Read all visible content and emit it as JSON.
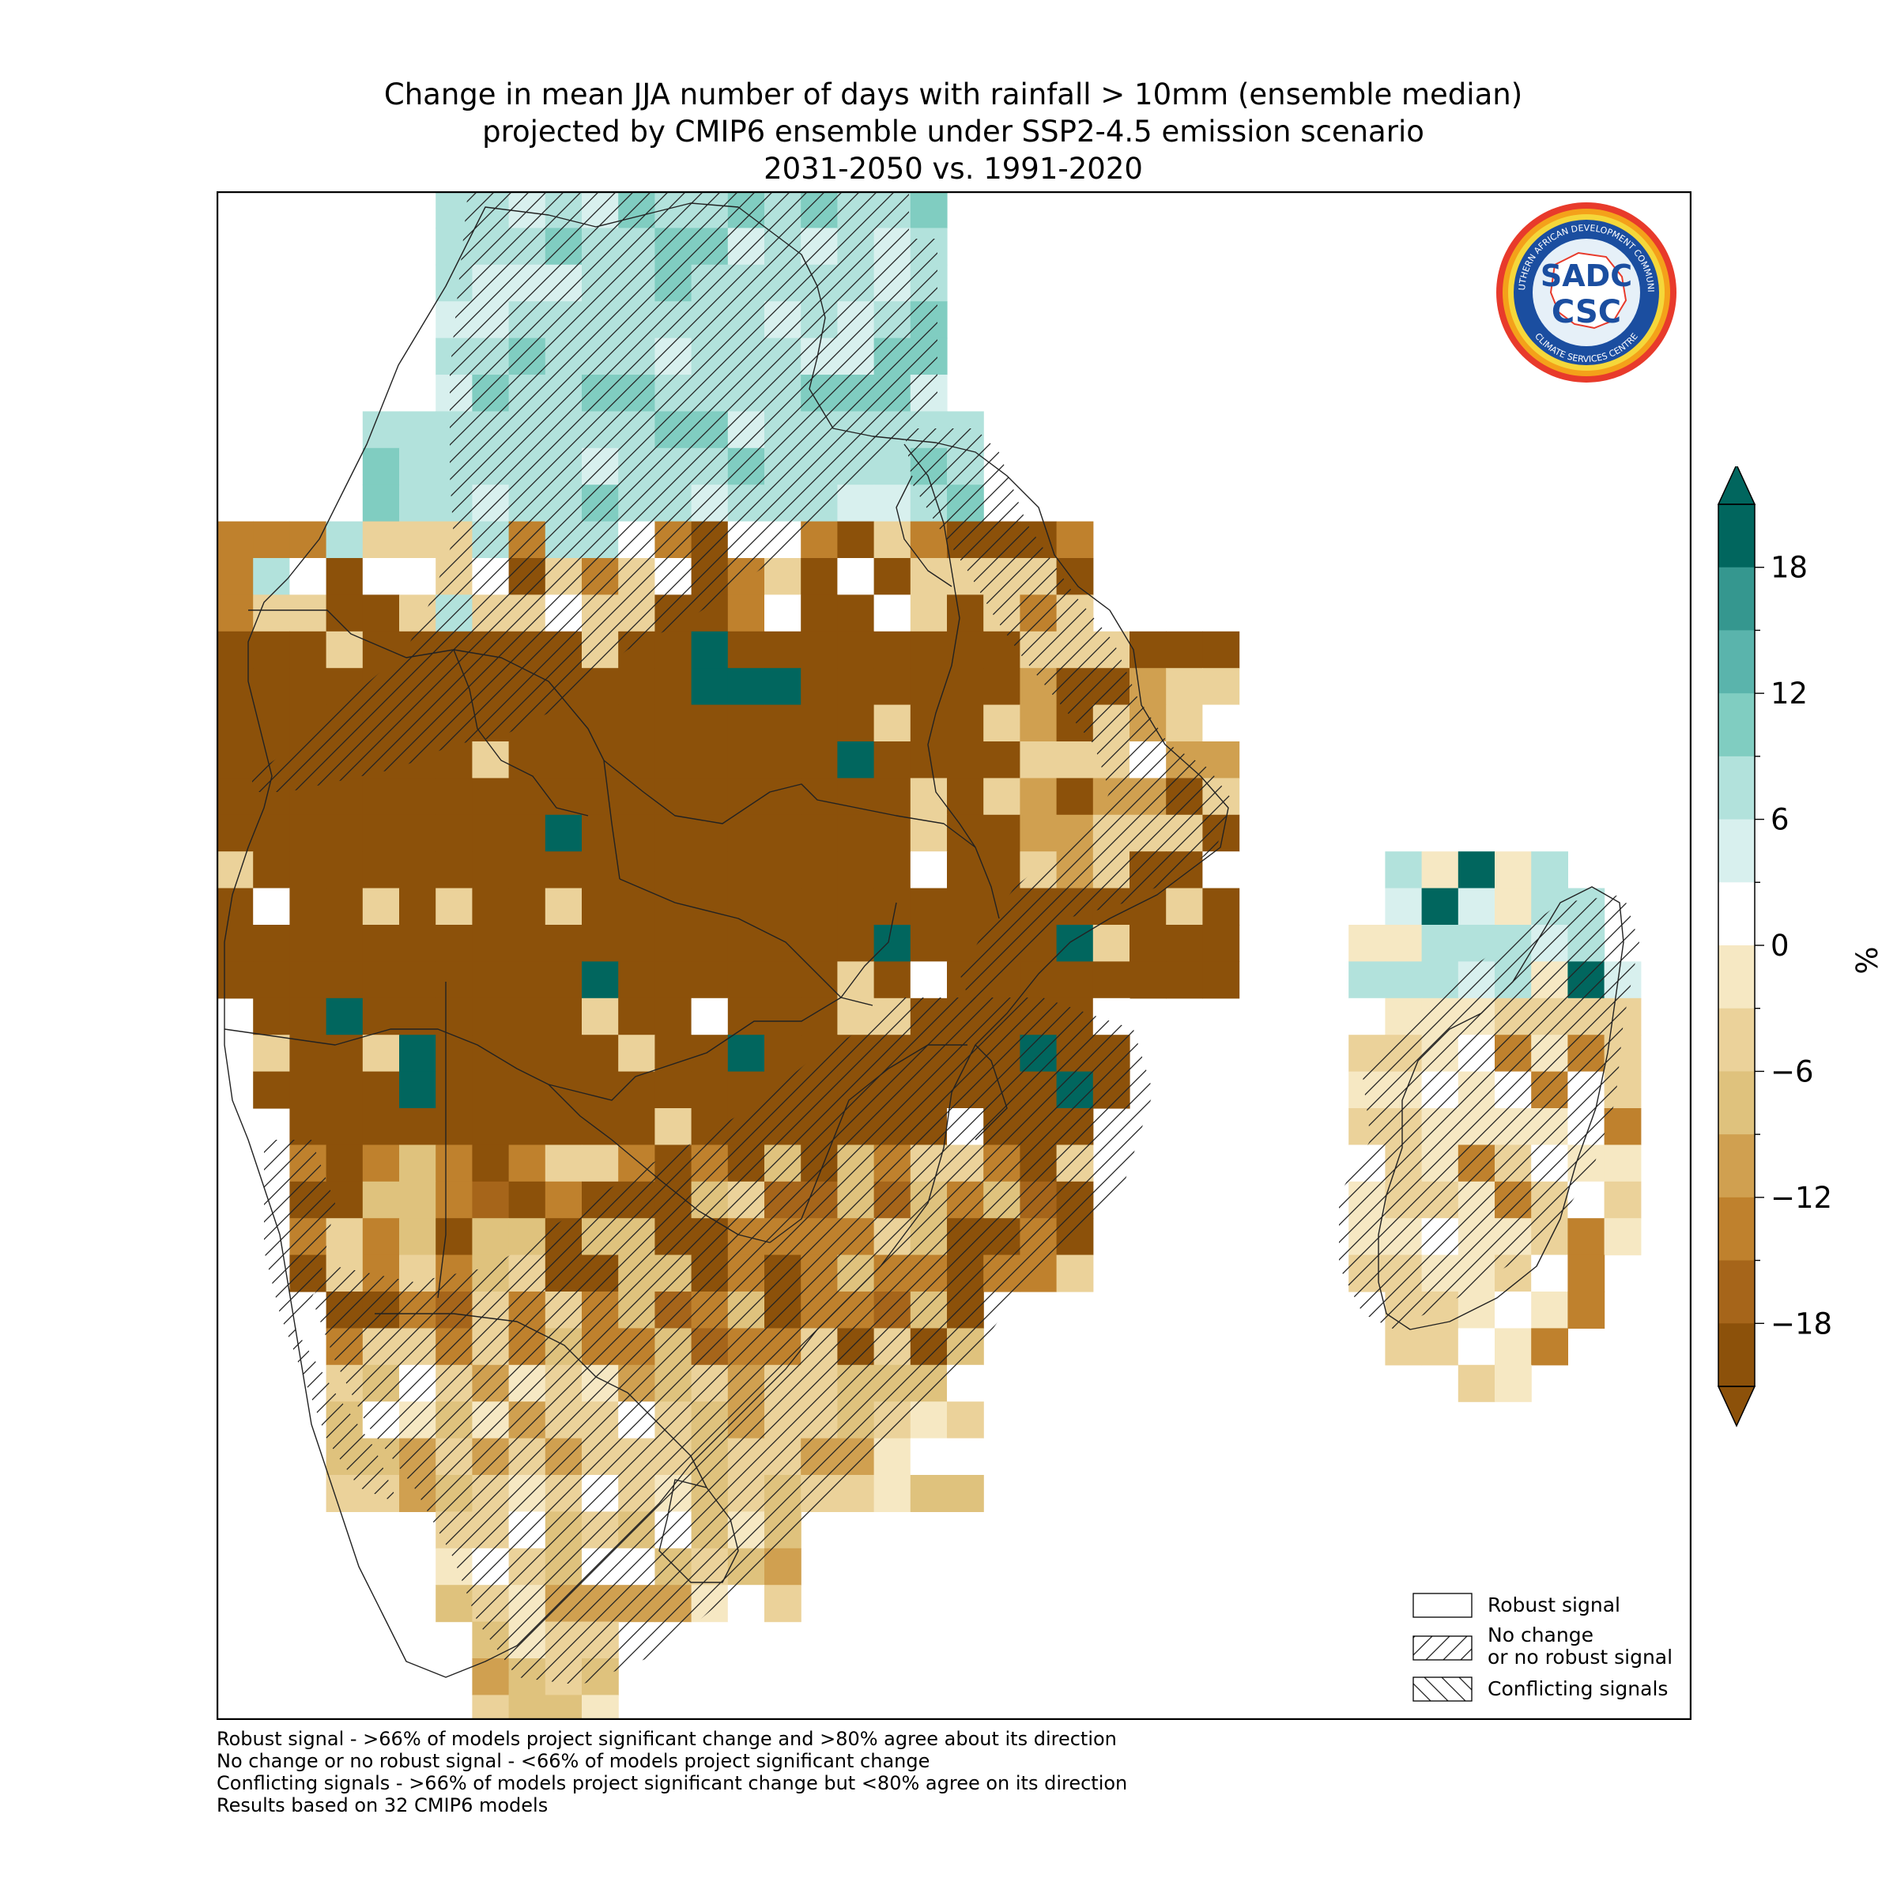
{
  "title": {
    "line1": "Change in mean JJA number of days with rainfall > 10mm (ensemble median)",
    "line2": "projected by CMIP6 ensemble under SSP2-4.5 emission scenario",
    "line3": "2031-2050 vs. 1991-2020"
  },
  "logo": {
    "ring_text_top": "SOUTHERN AFRICAN DEVELOPMENT COMMUNITY",
    "ring_text_bottom": "CLIMATE SERVICES CENTRE",
    "center_top": "SADC",
    "center_bottom": "CSC"
  },
  "legend": {
    "robust": "Robust signal",
    "no_change_line1": "No change",
    "no_change_line2": "or no robust signal",
    "conflicting": "Conflicting signals"
  },
  "colorbar": {
    "unit": "%",
    "ticks": [
      "18",
      "12",
      "6",
      "0",
      "−6",
      "−12",
      "−18"
    ],
    "range": [
      -21,
      21
    ],
    "step": 3,
    "extend": "both",
    "colors": [
      "#8c510a",
      "#a6651a",
      "#bf812d",
      "#d0a050",
      "#dfc27d",
      "#ebd29a",
      "#f6e8c3",
      "#ffffff",
      "#d8f0ee",
      "#b2e2dc",
      "#80cdc1",
      "#5ab4ac",
      "#35978f",
      "#01665e"
    ],
    "over_color": "#01665e",
    "under_color": "#8c510a"
  },
  "footnotes": [
    "Robust signal - >66% of models project significant change and >80% agree about its direction",
    "No change or no robust signal - <66% of models project significant change",
    "Conflicting signals - >66% of models project significant change but <80% agree on its direction",
    "Results based on 32 CMIP6 models"
  ]
}
